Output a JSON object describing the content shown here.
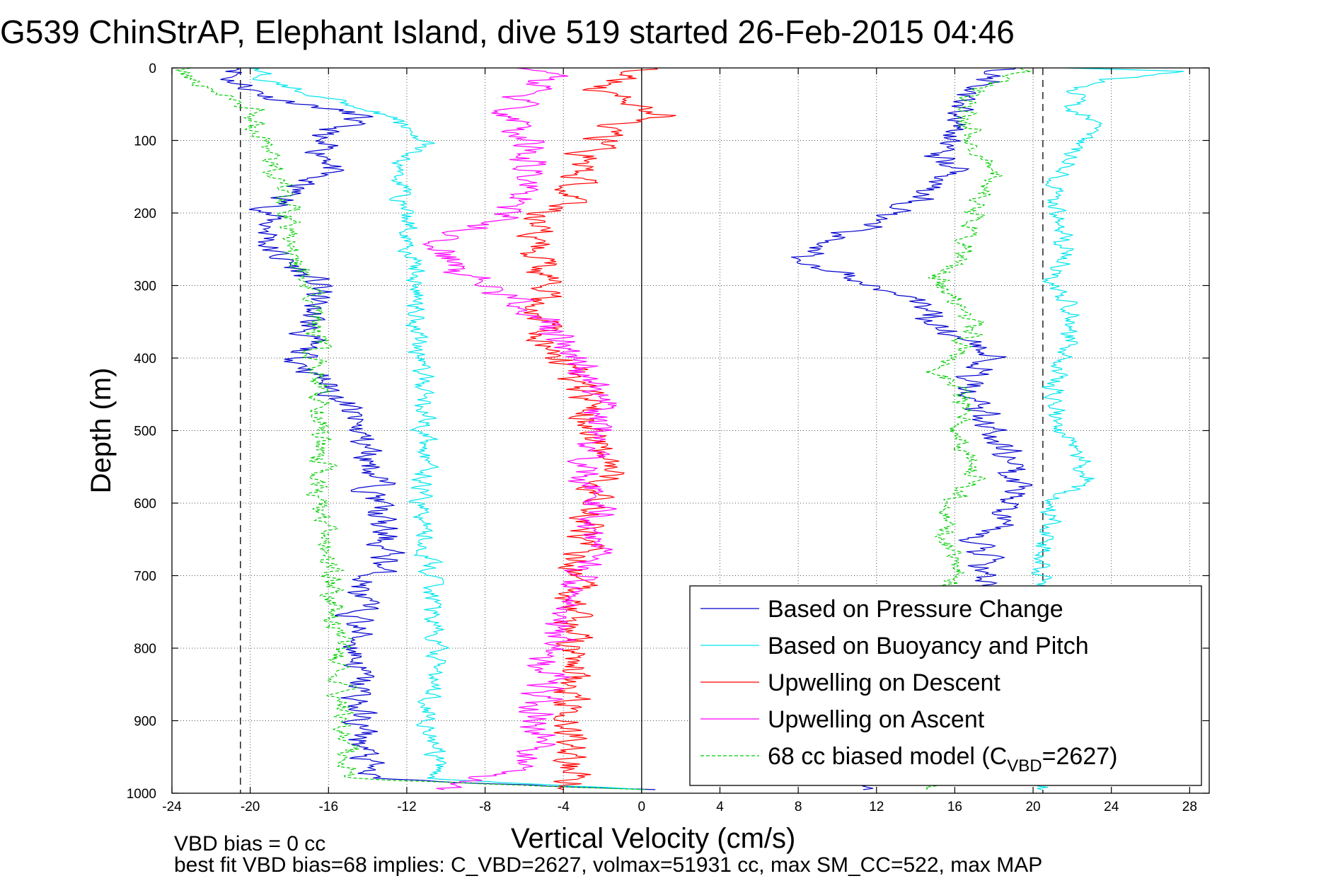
{
  "chart_data": {
    "type": "line",
    "title": "G539 ChinStrAP, Elephant Island, dive 519 started 26-Feb-2015 04:46",
    "xlabel": "Vertical Velocity (cm/s)",
    "ylabel": "Depth (m)",
    "xlim": [
      -24,
      29
    ],
    "ylim": [
      1000,
      0
    ],
    "y_reversed": true,
    "grid": true,
    "grid_style": "dotted",
    "legend_position": "bottom-right",
    "x_ticks": [
      -24,
      -20,
      -16,
      -12,
      -8,
      -4,
      0,
      4,
      8,
      12,
      16,
      20,
      24,
      28
    ],
    "x_tick_labels": [
      "-24",
      "-20",
      "-16",
      "-12",
      "-8",
      "-4",
      "0",
      "4",
      "8",
      "12",
      "16",
      "20",
      "24",
      "28"
    ],
    "y_ticks": [
      0,
      100,
      200,
      300,
      400,
      500,
      600,
      700,
      800,
      900,
      1000
    ],
    "y_tick_labels": [
      "0",
      "100",
      "200",
      "300",
      "400",
      "500",
      "600",
      "700",
      "800",
      "900",
      "1000"
    ],
    "reference_lines": [
      {
        "x": -20.5,
        "style": "dashed",
        "color": "#000000"
      },
      {
        "x": 0,
        "style": "solid",
        "color": "#000000"
      },
      {
        "x": 20.5,
        "style": "dashed",
        "color": "#000000"
      }
    ],
    "noise_amplitude": [
      0.9,
      0.55,
      1.0,
      1.0,
      0.6
    ],
    "series": [
      {
        "name": "Based on Pressure Change",
        "color": "#0000cc",
        "style": "solid",
        "descent": [
          [
            0,
            -20
          ],
          [
            15,
            -21
          ],
          [
            40,
            -19
          ],
          [
            65,
            -14.5
          ],
          [
            80,
            -15.5
          ],
          [
            100,
            -17
          ],
          [
            130,
            -15.5
          ],
          [
            160,
            -17.5
          ],
          [
            200,
            -19
          ],
          [
            250,
            -19
          ],
          [
            300,
            -16.5
          ],
          [
            350,
            -17
          ],
          [
            400,
            -17.5
          ],
          [
            450,
            -15.5
          ],
          [
            500,
            -14.5
          ],
          [
            560,
            -13.5
          ],
          [
            620,
            -13.5
          ],
          [
            680,
            -13
          ],
          [
            720,
            -14.5
          ],
          [
            800,
            -14.5
          ],
          [
            900,
            -14.5
          ],
          [
            980,
            -14
          ],
          [
            995,
            0
          ]
        ],
        "ascent": [
          [
            995,
            11.5
          ],
          [
            980,
            12
          ],
          [
            900,
            17.5
          ],
          [
            800,
            18
          ],
          [
            700,
            17.5
          ],
          [
            650,
            17
          ],
          [
            600,
            19
          ],
          [
            560,
            19.5
          ],
          [
            500,
            18
          ],
          [
            450,
            17
          ],
          [
            400,
            17.5
          ],
          [
            380,
            17
          ],
          [
            350,
            15
          ],
          [
            320,
            14
          ],
          [
            300,
            12
          ],
          [
            270,
            9
          ],
          [
            250,
            8.5
          ],
          [
            230,
            10
          ],
          [
            200,
            13
          ],
          [
            180,
            14
          ],
          [
            150,
            16
          ],
          [
            120,
            15
          ],
          [
            100,
            16
          ],
          [
            60,
            16
          ],
          [
            30,
            17
          ],
          [
            10,
            18
          ],
          [
            0,
            19
          ]
        ]
      },
      {
        "name": "Based on Buoyancy and Pitch",
        "color": "#00e5ee",
        "style": "solid",
        "descent": [
          [
            0,
            -20
          ],
          [
            20,
            -19
          ],
          [
            60,
            -13.5
          ],
          [
            100,
            -11
          ],
          [
            130,
            -12.5
          ],
          [
            200,
            -12
          ],
          [
            300,
            -11.5
          ],
          [
            400,
            -11.3
          ],
          [
            500,
            -11
          ],
          [
            600,
            -11.3
          ],
          [
            700,
            -10.8
          ],
          [
            800,
            -10.5
          ],
          [
            900,
            -10.8
          ],
          [
            980,
            -10.5
          ],
          [
            995,
            0
          ]
        ],
        "ascent": [
          [
            995,
            20.5
          ],
          [
            900,
            20.5
          ],
          [
            800,
            20.5
          ],
          [
            700,
            20.5
          ],
          [
            650,
            20.5
          ],
          [
            600,
            21
          ],
          [
            570,
            23
          ],
          [
            500,
            21.5
          ],
          [
            450,
            21
          ],
          [
            400,
            21.5
          ],
          [
            350,
            22
          ],
          [
            300,
            21
          ],
          [
            250,
            21.5
          ],
          [
            220,
            21.5
          ],
          [
            180,
            21
          ],
          [
            140,
            21.5
          ],
          [
            100,
            22.5
          ],
          [
            80,
            24
          ],
          [
            60,
            22
          ],
          [
            30,
            22
          ],
          [
            15,
            24
          ],
          [
            5,
            28
          ],
          [
            0,
            22
          ]
        ]
      },
      {
        "name": "Upwelling on Descent",
        "color": "#ff0000",
        "style": "solid",
        "descent": [
          [
            0,
            0
          ],
          [
            30,
            -2.5
          ],
          [
            65,
            1.5
          ],
          [
            80,
            -1.5
          ],
          [
            100,
            -2
          ],
          [
            130,
            -3
          ],
          [
            170,
            -3.5
          ],
          [
            200,
            -5
          ],
          [
            250,
            -5.5
          ],
          [
            300,
            -5
          ],
          [
            350,
            -5
          ],
          [
            400,
            -4
          ],
          [
            450,
            -3
          ],
          [
            500,
            -2.5
          ],
          [
            550,
            -2
          ],
          [
            600,
            -2
          ],
          [
            650,
            -3
          ],
          [
            700,
            -3.5
          ],
          [
            800,
            -3.5
          ],
          [
            900,
            -3.5
          ],
          [
            960,
            -3.5
          ],
          [
            995,
            -3.5
          ]
        ],
        "ascent": []
      },
      {
        "name": "Upwelling on Ascent",
        "color": "#ff00ff",
        "style": "solid",
        "descent": [],
        "ascent": [
          [
            995,
            -10
          ],
          [
            960,
            -5.5
          ],
          [
            900,
            -5.5
          ],
          [
            850,
            -5
          ],
          [
            800,
            -4.5
          ],
          [
            750,
            -4
          ],
          [
            700,
            -3
          ],
          [
            650,
            -2.5
          ],
          [
            600,
            -2.5
          ],
          [
            550,
            -2.5
          ],
          [
            500,
            -2
          ],
          [
            450,
            -2.5
          ],
          [
            400,
            -3.5
          ],
          [
            350,
            -5
          ],
          [
            300,
            -8
          ],
          [
            260,
            -10
          ],
          [
            240,
            -10.5
          ],
          [
            225,
            -9
          ],
          [
            210,
            -7.5
          ],
          [
            200,
            -7
          ],
          [
            150,
            -6
          ],
          [
            100,
            -6
          ],
          [
            60,
            -7
          ],
          [
            30,
            -6
          ],
          [
            10,
            -4
          ],
          [
            0,
            -6
          ]
        ]
      },
      {
        "name": "68 cc biased model (C",
        "name_sub": "VBD",
        "name_suffix": "=2627)",
        "color": "#00cc00",
        "style": "dashed",
        "descent": [
          [
            0,
            -23.5
          ],
          [
            15,
            -23.5
          ],
          [
            40,
            -21
          ],
          [
            60,
            -19.5
          ],
          [
            80,
            -20
          ],
          [
            100,
            -19.5
          ],
          [
            130,
            -19
          ],
          [
            200,
            -18
          ],
          [
            260,
            -18
          ],
          [
            300,
            -17
          ],
          [
            400,
            -16.5
          ],
          [
            500,
            -16.2
          ],
          [
            600,
            -16.5
          ],
          [
            700,
            -16
          ],
          [
            800,
            -15.5
          ],
          [
            900,
            -15.3
          ],
          [
            980,
            -15
          ],
          [
            995,
            0
          ]
        ],
        "ascent": [
          [
            995,
            15
          ],
          [
            900,
            15.5
          ],
          [
            800,
            15.5
          ],
          [
            700,
            16
          ],
          [
            650,
            15.5
          ],
          [
            600,
            16
          ],
          [
            560,
            17
          ],
          [
            500,
            16
          ],
          [
            450,
            16.5
          ],
          [
            420,
            15
          ],
          [
            400,
            16
          ],
          [
            350,
            17
          ],
          [
            310,
            16
          ],
          [
            290,
            15
          ],
          [
            270,
            16
          ],
          [
            250,
            16.5
          ],
          [
            200,
            17
          ],
          [
            170,
            17.5
          ],
          [
            150,
            18
          ],
          [
            130,
            17.5
          ],
          [
            100,
            16.5
          ],
          [
            60,
            16.5
          ],
          [
            30,
            17
          ],
          [
            10,
            19
          ],
          [
            0,
            20
          ]
        ]
      }
    ],
    "footer": {
      "line1": "VBD bias = 0 cc",
      "line2": "best fit VBD bias=68 implies: C_VBD=2627, volmax=51931 cc, max SM_CC=522, max MAP"
    }
  }
}
